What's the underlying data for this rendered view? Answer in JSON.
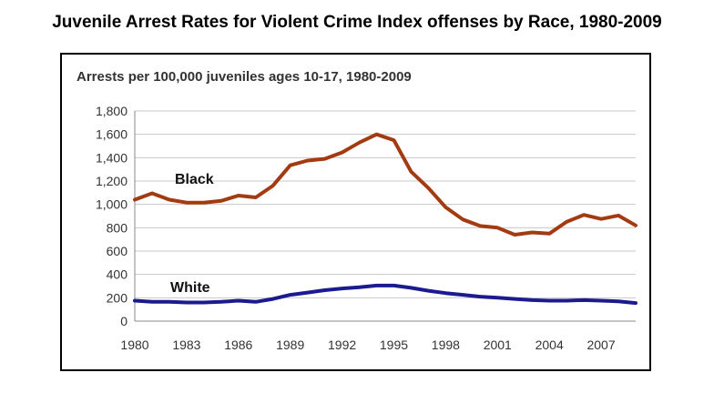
{
  "page": {
    "title": "Juvenile Arrest Rates for Violent Crime Index offenses by Race, 1980-2009"
  },
  "chart_data": {
    "type": "line",
    "title": "Arrests per 100,000 juveniles ages 10-17, 1980-2009",
    "xlabel": "",
    "ylabel": "",
    "x": [
      1980,
      1981,
      1982,
      1983,
      1984,
      1985,
      1986,
      1987,
      1988,
      1989,
      1990,
      1991,
      1992,
      1993,
      1994,
      1995,
      1996,
      1997,
      1998,
      1999,
      2000,
      2001,
      2002,
      2003,
      2004,
      2005,
      2006,
      2007,
      2008,
      2009
    ],
    "xticks": [
      "1980",
      "1983",
      "1986",
      "1989",
      "1992",
      "1995",
      "1998",
      "2001",
      "2004",
      "2007"
    ],
    "yticks": [
      "0",
      "200",
      "400",
      "600",
      "800",
      "1,000",
      "1,200",
      "1,400",
      "1,600",
      "1,800"
    ],
    "ylim": [
      0,
      1800
    ],
    "grid": true,
    "series": [
      {
        "name": "Black",
        "color": "#a33b12",
        "values": [
          1040,
          1095,
          1040,
          1015,
          1015,
          1030,
          1075,
          1060,
          1160,
          1335,
          1375,
          1390,
          1445,
          1530,
          1600,
          1550,
          1280,
          1140,
          975,
          870,
          815,
          800,
          740,
          760,
          750,
          850,
          910,
          875,
          905,
          820
        ]
      },
      {
        "name": "White",
        "color": "#1c1a8f",
        "values": [
          175,
          165,
          165,
          160,
          160,
          165,
          175,
          165,
          190,
          225,
          245,
          265,
          280,
          290,
          305,
          305,
          285,
          260,
          240,
          225,
          210,
          200,
          190,
          180,
          175,
          175,
          180,
          175,
          170,
          155
        ]
      }
    ]
  }
}
